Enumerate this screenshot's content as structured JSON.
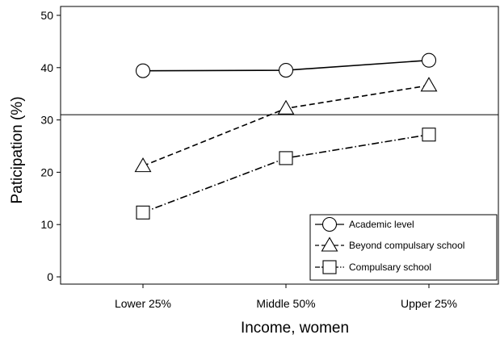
{
  "chart_data": {
    "type": "line",
    "categories": [
      "Lower 25%",
      "Middle 50%",
      "Upper 25%"
    ],
    "xlabel": "Income, women",
    "ylabel": "Paticipation (%)",
    "ylim": [
      0,
      50
    ],
    "yticks": [
      0,
      10,
      20,
      30,
      40,
      50
    ],
    "grid": false,
    "reference_line": 31,
    "legend_position": "bottom-right",
    "series": [
      {
        "name": "Academic level",
        "marker": "circle",
        "dash": "solid",
        "values": [
          39.4,
          39.5,
          41.4
        ]
      },
      {
        "name": "Beyond compulsary school",
        "marker": "triangle",
        "dash": "dashed",
        "values": [
          21.2,
          32.2,
          36.6
        ]
      },
      {
        "name": "Compulsary school",
        "marker": "square",
        "dash": "dash-dot",
        "values": [
          12.3,
          22.7,
          27.2
        ]
      }
    ]
  }
}
